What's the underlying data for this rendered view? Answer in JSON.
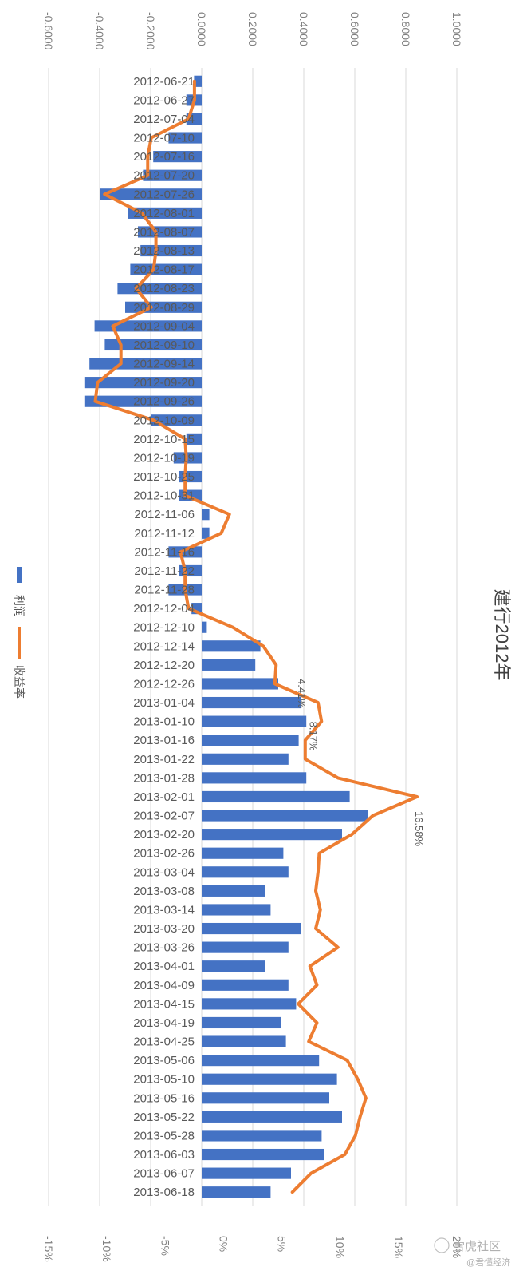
{
  "chart_data": {
    "type": "bar+line",
    "title": "建行2012年",
    "orientation": "rotated-90",
    "grid": true,
    "legend_position": "left",
    "primary_axis": {
      "ticks": [
        "-0.6000",
        "-0.4000",
        "-0.2000",
        "0.0000",
        "0.2000",
        "0.4000",
        "0.6000",
        "0.8000",
        "1.0000"
      ],
      "range": [
        -0.6,
        1.0
      ]
    },
    "secondary_axis": {
      "ticks": [
        "-15%",
        "-10%",
        "-5%",
        "0%",
        "5%",
        "10%",
        "15%",
        "20%"
      ],
      "range": [
        -15,
        20
      ]
    },
    "category_labels": [
      "2012-06-21",
      "2012-06-27",
      "2012-07-04",
      "2012-07-10",
      "2012-07-16",
      "2012-07-20",
      "2012-07-26",
      "2012-08-01",
      "2012-08-07",
      "2012-08-13",
      "2012-08-17",
      "2012-08-23",
      "2012-08-29",
      "2012-09-04",
      "2012-09-10",
      "2012-09-14",
      "2012-09-20",
      "2012-09-26",
      "2012-10-09",
      "2012-10-15",
      "2012-10-19",
      "2012-10-25",
      "2012-10-31",
      "2012-11-06",
      "2012-11-12",
      "2012-11-16",
      "2012-11-22",
      "2012-11-28",
      "2012-12-04",
      "2012-12-10",
      "2012-12-14",
      "2012-12-20",
      "2012-12-26",
      "2013-01-04",
      "2013-01-10",
      "2013-01-16",
      "2013-01-22",
      "2013-01-28",
      "2013-02-01",
      "2013-02-07",
      "2013-02-20",
      "2013-02-26",
      "2013-03-04",
      "2013-03-08",
      "2013-03-14",
      "2013-03-20",
      "2013-03-26",
      "2013-04-01",
      "2013-04-09",
      "2013-04-15",
      "2013-04-19",
      "2013-04-25",
      "2013-05-06",
      "2013-05-10",
      "2013-05-16",
      "2013-05-22",
      "2013-05-28",
      "2013-06-03",
      "2013-06-07",
      "2013-06-18"
    ],
    "series": [
      {
        "name": "利润",
        "type": "bar",
        "axis": "primary",
        "color": "#4472c4",
        "values": [
          -0.03,
          -0.06,
          -0.06,
          -0.13,
          -0.19,
          -0.23,
          -0.4,
          -0.29,
          -0.25,
          -0.24,
          -0.28,
          -0.33,
          -0.3,
          -0.42,
          -0.38,
          -0.44,
          -0.46,
          -0.46,
          -0.2,
          -0.06,
          -0.11,
          -0.09,
          -0.09,
          0.03,
          0.03,
          -0.13,
          -0.09,
          -0.13,
          -0.04,
          0.02,
          0.23,
          0.21,
          0.3,
          0.39,
          0.41,
          0.38,
          0.34,
          0.41,
          0.58,
          0.65,
          0.55,
          0.32,
          0.34,
          0.25,
          0.27,
          0.39,
          0.34,
          0.25,
          0.34,
          0.37,
          0.31,
          0.33,
          0.46,
          0.53,
          0.5,
          0.55,
          0.47,
          0.48,
          0.35,
          0.27
        ]
      },
      {
        "name": "收益率",
        "type": "line",
        "axis": "secondary",
        "color": "#ed7d31",
        "values": [
          -2.5,
          -2.5,
          -3.0,
          -6.2,
          -6.5,
          -6.5,
          -10.2,
          -7.0,
          -5.8,
          -5.8,
          -6.0,
          -7.5,
          -6.2,
          -9.5,
          -8.8,
          -8.8,
          -10.8,
          -11.0,
          -6.0,
          -3.3,
          -3.2,
          -3.3,
          -3.3,
          0.5,
          -0.2,
          -3.7,
          -3.3,
          -3.3,
          -3.0,
          0.8,
          3.4,
          4.5,
          4.4,
          8.1,
          8.4,
          7.0,
          7.0,
          9.8,
          16.58,
          12.8,
          11.0,
          8.2,
          8.1,
          7.9,
          8.3,
          7.9,
          9.8,
          7.4,
          8.0,
          6.4,
          8.0,
          7.3,
          10.6,
          11.5,
          12.2,
          11.7,
          11.3,
          10.4,
          7.5,
          5.9
        ]
      }
    ],
    "annotations": [
      "4.41%",
      "8.17%",
      "16.58%"
    ]
  },
  "watermark": {
    "text": "雪虎社区",
    "sub": "@君懂经济"
  }
}
